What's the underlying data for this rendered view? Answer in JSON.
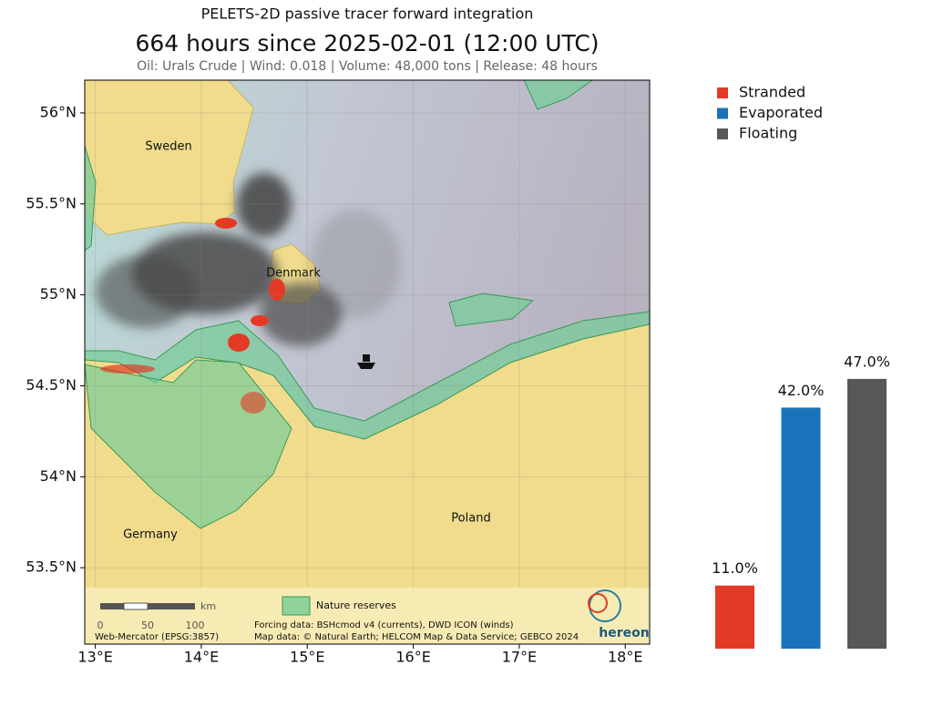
{
  "title": "PELETS-2D passive tracer forward integration",
  "heading": "664 hours since 2025-02-01 (12:00 UTC)",
  "subtitle": "Oil: Urals Crude | Wind: 0.018 | Volume: 48,000 tons | Release: 48 hours",
  "map": {
    "xlim": [
      12.9,
      18.23
    ],
    "ylim": [
      53.08,
      56.18
    ],
    "xticks": [
      {
        "value": 13,
        "label": "13°E"
      },
      {
        "value": 14,
        "label": "14°E"
      },
      {
        "value": 15,
        "label": "15°E"
      },
      {
        "value": 16,
        "label": "16°E"
      },
      {
        "value": 17,
        "label": "17°E"
      },
      {
        "value": 18,
        "label": "18°E"
      }
    ],
    "yticks": [
      {
        "value": 53.5,
        "label": "53.5°N"
      },
      {
        "value": 54,
        "label": "54°N"
      },
      {
        "value": 54.5,
        "label": "54.5°N"
      },
      {
        "value": 55,
        "label": "55°N"
      },
      {
        "value": 55.5,
        "label": "55.5°N"
      },
      {
        "value": 56,
        "label": "56°N"
      }
    ],
    "places": [
      "Sweden",
      "Denmark",
      "Germany",
      "Poland"
    ],
    "scale_bar": {
      "unit": "km",
      "ticks": [
        0,
        50,
        100
      ]
    },
    "projection": "Web-Mercator (EPSG:3857)",
    "legend": "Nature reserves",
    "forcing": "Forcing data: BSHcmod v4 (currents), DWD ICON (winds)",
    "map_data": "Map data: © Natural Earth; HELCOM Map & Data Service; GEBCO 2024",
    "logo": "hereon"
  },
  "chart_data": {
    "type": "bar",
    "categories": [
      "Stranded",
      "Evaporated",
      "Floating"
    ],
    "values": [
      11,
      42,
      47
    ],
    "value_labels": [
      "11.0%",
      "42.0%",
      "47.0%"
    ],
    "colors": [
      "#e33a26",
      "#1a72bb",
      "#575757"
    ]
  }
}
